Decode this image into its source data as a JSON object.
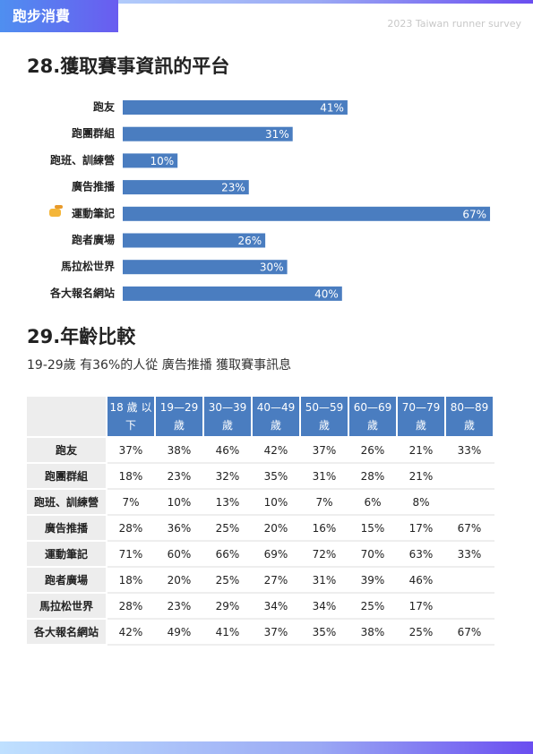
{
  "header": {
    "section": "跑步消費",
    "survey": "2023 Taiwan runner survey"
  },
  "chart_data": {
    "type": "bar",
    "title": "28.獲取賽事資訊的平台",
    "categories": [
      "跑友",
      "跑團群組",
      "跑班、訓練營",
      "廣告推播",
      "運動筆記",
      "跑者廣場",
      "馬拉松世界",
      "各大報名網站"
    ],
    "values": [
      41,
      31,
      10,
      23,
      67,
      26,
      30,
      40
    ],
    "value_labels": [
      "41%",
      "31%",
      "10%",
      "23%",
      "67%",
      "26%",
      "30%",
      "40%"
    ],
    "color": "#4a7dc0"
  },
  "comparison": {
    "title": "29.年齡比較",
    "subtitle": "19-29歲 有36%的人從 廣告推播 獲取賽事訊息",
    "table": {
      "columns": [
        "18 歲 以下",
        "19—29歲",
        "30—39歲",
        "40—49歲",
        "50—59歲",
        "60—69歲",
        "70—79歲",
        "80—89歲"
      ],
      "rows": [
        [
          "跑友",
          "37%",
          "38%",
          "46%",
          "42%",
          "37%",
          "26%",
          "21%",
          "33%"
        ],
        [
          "跑團群組",
          "18%",
          "23%",
          "32%",
          "35%",
          "31%",
          "28%",
          "21%",
          null
        ],
        [
          "跑班、訓練營",
          "7%",
          "10%",
          "13%",
          "10%",
          "7%",
          "6%",
          "8%",
          null
        ],
        [
          "廣告推播",
          "28%",
          "36%",
          "25%",
          "20%",
          "16%",
          "15%",
          "17%",
          "67%"
        ],
        [
          "運動筆記",
          "71%",
          "60%",
          "66%",
          "69%",
          "72%",
          "70%",
          "63%",
          "33%"
        ],
        [
          "跑者廣場",
          "18%",
          "20%",
          "25%",
          "27%",
          "31%",
          "39%",
          "46%",
          null
        ],
        [
          "馬拉松世界",
          "28%",
          "23%",
          "29%",
          "34%",
          "34%",
          "25%",
          "17%",
          null
        ],
        [
          "各大報名網站",
          "42%",
          "49%",
          "41%",
          "37%",
          "35%",
          "38%",
          "25%",
          "67%"
        ]
      ]
    }
  }
}
